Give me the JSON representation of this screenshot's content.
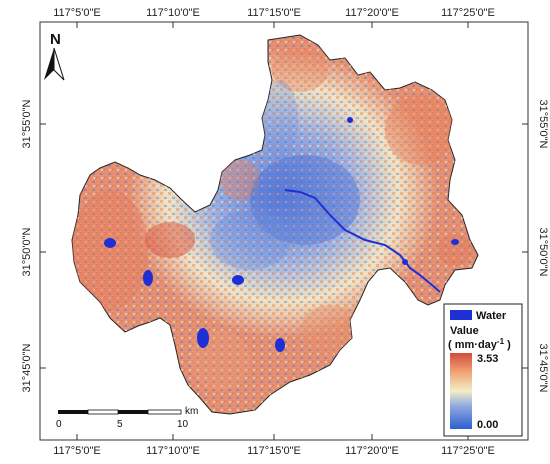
{
  "map": {
    "lon_ticks": [
      "117°5'0\"E",
      "117°10'0\"E",
      "117°15'0\"E",
      "117°20'0\"E",
      "117°25'0\"E"
    ],
    "lat_ticks": [
      "31°55'0\"N",
      "31°50'0\"N",
      "31°45'0\"N"
    ],
    "north_arrow_label": "N",
    "scale_bar": {
      "labels": [
        "0",
        "5",
        "10"
      ],
      "unit": "km"
    },
    "legend": {
      "water_label": "Water",
      "value_title": "Value",
      "value_unit_open": "( mm·day",
      "value_unit_sup": "-1",
      "value_unit_close": " )",
      "max_label": "3.53",
      "min_label": "0.00",
      "water_color": "#1f2fd6",
      "ramp_colors": [
        "#2f5fd0",
        "#8fa8e0",
        "#f3edc6",
        "#f0a373",
        "#d44b3c"
      ]
    }
  }
}
